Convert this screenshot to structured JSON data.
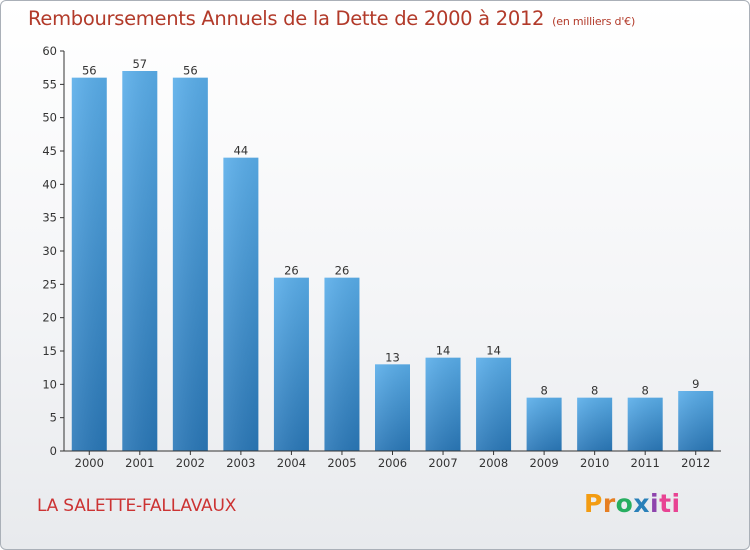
{
  "header": {
    "title": "Remboursements Annuels de la Dette de 2000 à 2012",
    "unit": "(en milliers d'€)"
  },
  "footer": {
    "commune": "LA SALETTE-FALLAVAUX",
    "brand_letters": [
      "P",
      "r",
      "o",
      "x",
      "i",
      "ti"
    ]
  },
  "colors": {
    "title": "#b23a2a",
    "commune": "#cc3333",
    "bar_top": "#5aaeea",
    "bar_bottom": "#2a78b8",
    "axis": "#333333"
  },
  "chart_data": {
    "type": "bar",
    "title": "Remboursements Annuels de la Dette de 2000 à 2012",
    "xlabel": "",
    "ylabel": "",
    "categories": [
      "2000",
      "2001",
      "2002",
      "2003",
      "2004",
      "2005",
      "2006",
      "2007",
      "2008",
      "2009",
      "2010",
      "2011",
      "2012"
    ],
    "values": [
      56,
      57,
      56,
      44,
      26,
      26,
      13,
      14,
      14,
      8,
      8,
      8,
      9
    ],
    "ylim": [
      0,
      60
    ],
    "yticks": [
      0,
      5,
      10,
      15,
      20,
      25,
      30,
      35,
      40,
      45,
      50,
      55,
      60
    ],
    "grid": false,
    "data_labels": true
  }
}
